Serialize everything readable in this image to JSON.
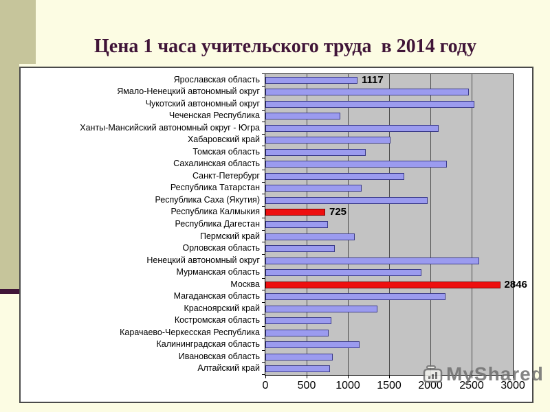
{
  "slide": {
    "title": "Цена 1 часа учительского труда  в 2014 году"
  },
  "chart_data": {
    "type": "bar",
    "orientation": "horizontal",
    "title": "Цена 1 часа учительского труда в 2014 году",
    "categories": [
      "Ярославская область",
      "Ямало-Ненецкий автономный округ",
      "Чукотский автономный округ",
      "Чеченская Республика",
      "Ханты-Мансийский автономный округ - Югра",
      "Хабаровский край",
      "Томская область",
      "Сахалинская область",
      "Санкт-Петербург",
      "Республика Татарстан",
      "Республика Саха (Якутия)",
      "Республика Калмыкия",
      "Республика Дагестан",
      "Пермский край",
      "Орловская область",
      "Ненецкий автономный округ",
      "Мурманская область",
      "Москва",
      "Магаданская область",
      "Красноярский край",
      "Костромская область",
      "Карачаево-Черкесская Республика",
      "Калининградская область",
      "Ивановская область",
      "Алтайский край"
    ],
    "values": [
      1117,
      2470,
      2530,
      910,
      2100,
      1520,
      1215,
      2200,
      1680,
      1170,
      1970,
      725,
      760,
      1080,
      840,
      2590,
      1890,
      2846,
      2180,
      1360,
      800,
      770,
      1140,
      820,
      780
    ],
    "highlighted_categories": [
      "Республика Калмыкия",
      "Москва"
    ],
    "data_labels": {
      "0": "1117",
      "11": "725",
      "17": "2846"
    },
    "xlim": [
      0,
      3000
    ],
    "xticks": [
      0,
      500,
      1000,
      1500,
      2000,
      2500,
      3000
    ],
    "xtick_labels": [
      "0",
      "500",
      "1000",
      "1500",
      "2000",
      "2500",
      "3000"
    ],
    "grid": true,
    "legend": false,
    "plot_background": "#c3c3c3",
    "bar_color": "#9b9bef",
    "bar_border_color": "#3b3b8a",
    "highlight_color": "#ee0f0f",
    "highlight_border_color": "#7c0505"
  },
  "colors": {
    "slide_bg": "#fcfce3",
    "accent": "#c6c59b",
    "title": "#401538",
    "grid": "#4d4d4d",
    "watermark": "#6f6f6f"
  },
  "watermark": {
    "text": "MyShared",
    "icon": "presentation-chart-icon"
  }
}
